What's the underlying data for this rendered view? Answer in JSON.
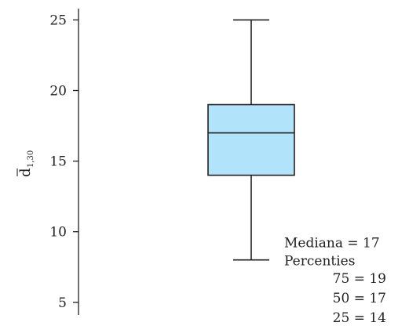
{
  "chart_data": {
    "type": "box",
    "ylabel": "d",
    "ylabel_subscript": "1,30",
    "ylim": [
      4.1,
      25.8
    ],
    "yticks": [
      5,
      10,
      15,
      20,
      25
    ],
    "box": {
      "min": 8,
      "q1": 14,
      "median": 17,
      "q3": 19,
      "max": 25
    },
    "annotations": {
      "median": "Mediana = 17",
      "percentiles_title": "Percenties",
      "p75": "75 = 19",
      "p50": "50 = 17",
      "p25": "25 = 14"
    },
    "colors": {
      "box_fill": "#b1e4fb",
      "lines": "#231f20"
    }
  }
}
